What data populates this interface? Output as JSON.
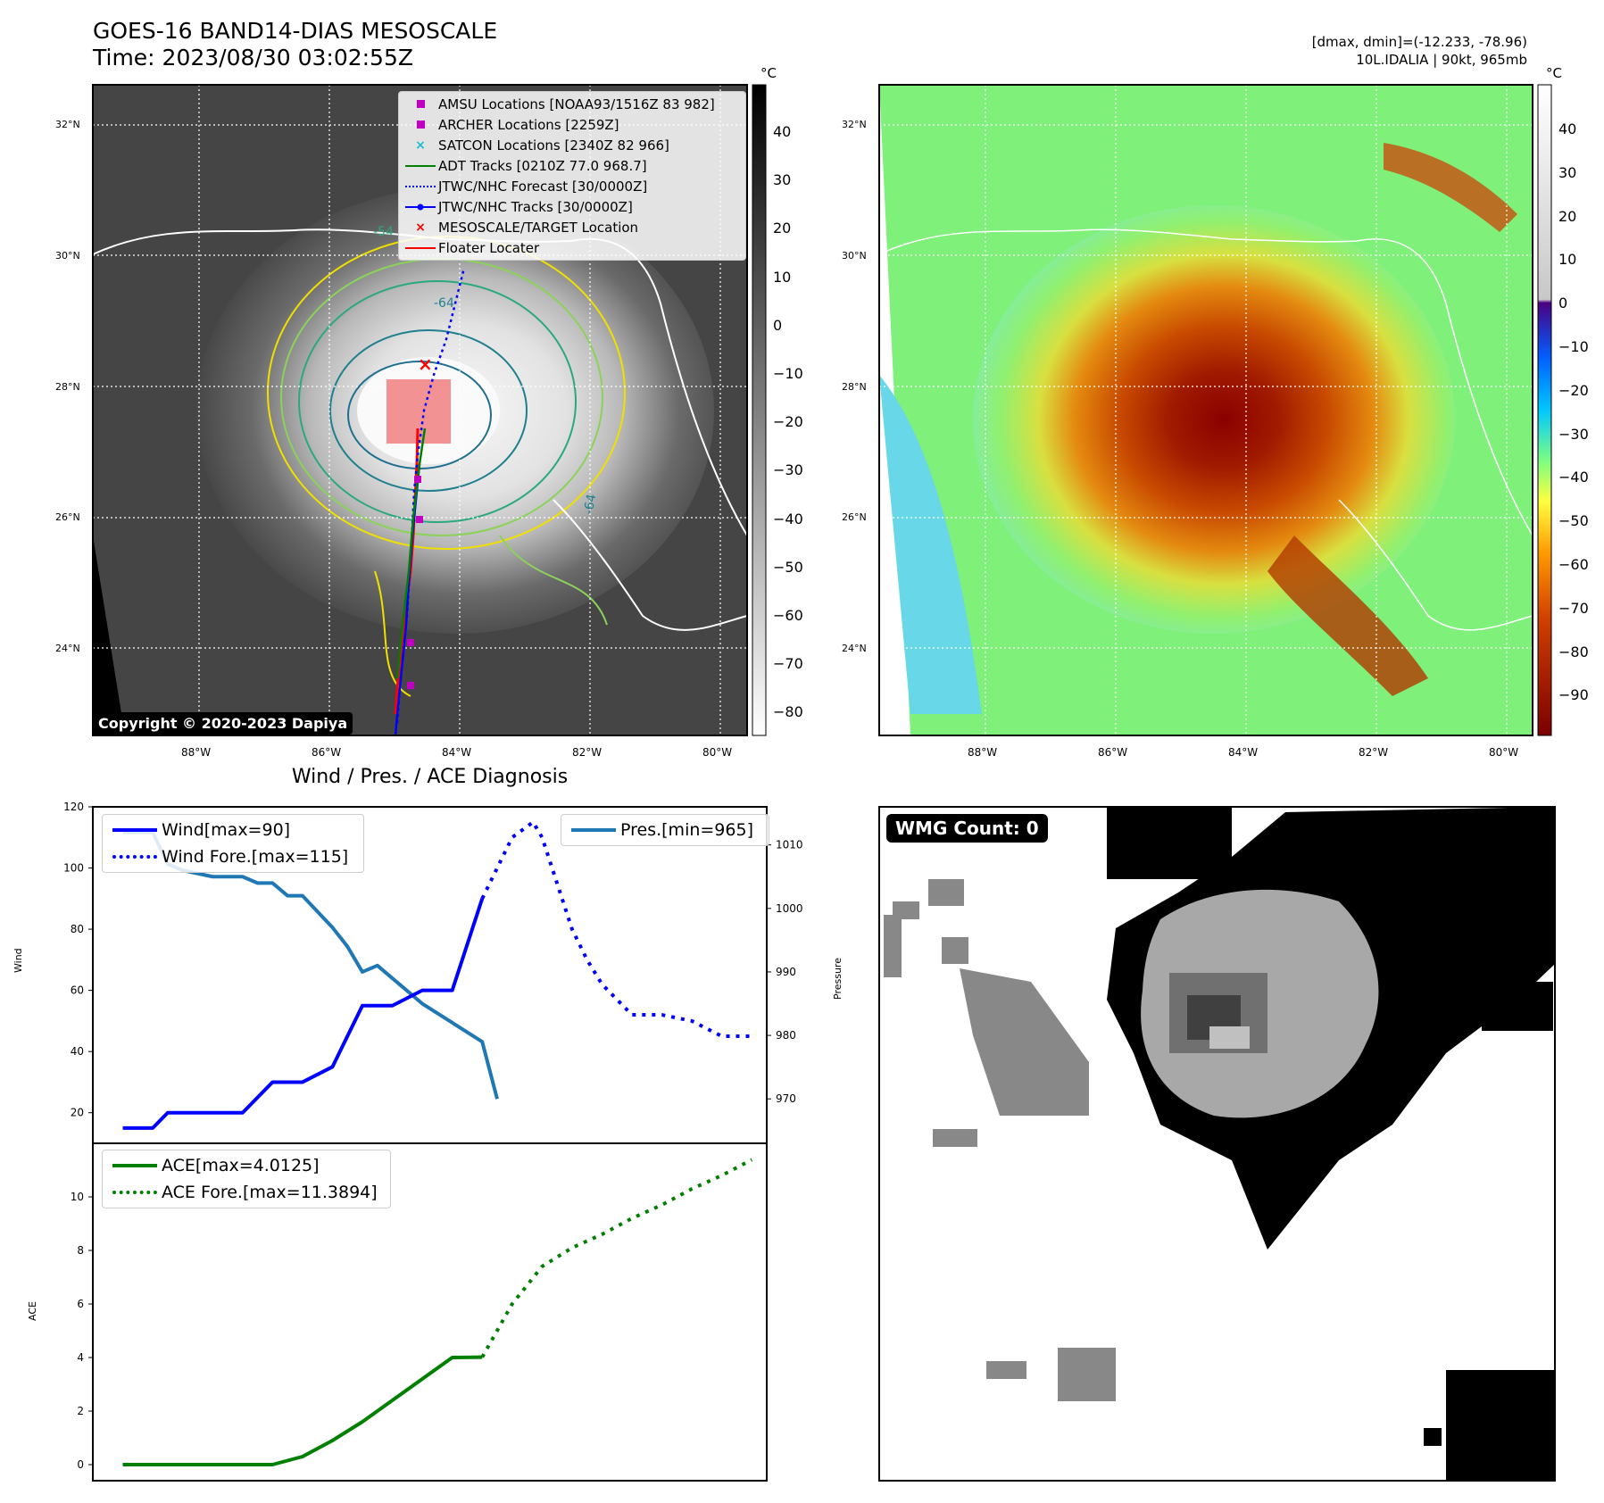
{
  "header": {
    "title": "GOES-16 BAND14-DIAS MESOSCALE",
    "time": "Time: 2023/08/30 03:02:55Z",
    "range": "[dmax, dmin]=(-12.233, -78.96)",
    "storm": "10L.IDALIA | 90kt, 965mb"
  },
  "map_panel": {
    "lat_labels": [
      "32°N",
      "30°N",
      "28°N",
      "26°N",
      "24°N"
    ],
    "lon_labels": [
      "88°W",
      "86°W",
      "84°W",
      "82°W",
      "80°W"
    ],
    "copyright": "Copyright © 2020-2023 Dapiya",
    "colorbar_unit": "°C",
    "colorbar_ticks": [
      "40",
      "30",
      "20",
      "10",
      "0",
      "−10",
      "−20",
      "−30",
      "−40",
      "−50",
      "−60",
      "−70",
      "−80"
    ],
    "contour_labels": [
      "-54",
      "-64",
      "-64"
    ],
    "legend": [
      {
        "label": "AMSU Locations [NOAA93/1516Z 83 982]",
        "symbol": "square",
        "color": "#c000c0"
      },
      {
        "label": "ARCHER Locations [2259Z]",
        "symbol": "square",
        "color": "#c000c0"
      },
      {
        "label": "SATCON Locations [2340Z 82 966]",
        "symbol": "x",
        "color": "#17becf"
      },
      {
        "label": "ADT Tracks [0210Z 77.0 968.7]",
        "symbol": "line",
        "color": "#008000"
      },
      {
        "label": "JTWC/NHC Forecast [30/0000Z]",
        "symbol": "dotted",
        "color": "#0000ff"
      },
      {
        "label": "JTWC/NHC Tracks [30/0000Z]",
        "symbol": "line-dot",
        "color": "#0000ff"
      },
      {
        "label": "MESOSCALE/TARGET Location",
        "symbol": "x",
        "color": "#ff0000"
      },
      {
        "label": "Floater Locater",
        "symbol": "line",
        "color": "#ff0000"
      }
    ]
  },
  "enhanced_panel": {
    "lat_labels": [
      "32°N",
      "30°N",
      "28°N",
      "26°N",
      "24°N"
    ],
    "lon_labels": [
      "88°W",
      "86°W",
      "84°W",
      "82°W",
      "80°W"
    ],
    "colorbar_unit": "°C",
    "colorbar_ticks": [
      "40",
      "30",
      "20",
      "10",
      "0",
      "−10",
      "−20",
      "−30",
      "−40",
      "−50",
      "−60",
      "−70",
      "−80",
      "−90"
    ]
  },
  "wmg_panel": {
    "label": "WMG Count: 0"
  },
  "chart_data": [
    {
      "type": "line",
      "title": "Wind / Pres. / ACE Diagnosis",
      "ylabel": "Wind",
      "ylabel_right": "Pressure",
      "ylim": [
        10,
        120
      ],
      "ylim_right": [
        963,
        1016
      ],
      "yticks": [
        20,
        40,
        60,
        80,
        100,
        120
      ],
      "yticks_right": [
        970,
        980,
        990,
        1000,
        1010
      ],
      "xlim": [
        0,
        22.5
      ],
      "series": [
        {
          "name": "Wind[max=90]",
          "axis": "left",
          "style": "solid",
          "color": "#0000ff",
          "x": [
            1,
            2,
            2.5,
            3,
            4,
            5,
            5.5,
            6,
            7,
            8,
            8.5,
            9,
            10,
            11,
            12,
            13
          ],
          "y": [
            15,
            15,
            20,
            20,
            20,
            20,
            25,
            30,
            30,
            35,
            45,
            55,
            55,
            60,
            60,
            90
          ]
        },
        {
          "name": "Wind Fore.[max=115]",
          "axis": "left",
          "style": "dotted",
          "color": "#0000ff",
          "x": [
            13,
            14,
            14.7,
            15,
            16,
            16.5,
            17,
            18,
            19,
            20,
            21,
            22
          ],
          "y": [
            90,
            110,
            115,
            110,
            80,
            70,
            62,
            52,
            52,
            50,
            45,
            45
          ]
        },
        {
          "name": "Pres.[min=965]",
          "axis": "right",
          "style": "solid",
          "color": "#1f77b4",
          "x": [
            1,
            2,
            2.5,
            3,
            4,
            5,
            5.5,
            6,
            6.5,
            7,
            8,
            8.5,
            9,
            9.5,
            10,
            11,
            12,
            13,
            13.5
          ],
          "y": [
            1012,
            1012,
            1007,
            1006,
            1005,
            1005,
            1004,
            1004,
            1002,
            1002,
            997,
            994,
            990,
            991,
            989,
            985,
            982,
            979,
            970
          ]
        }
      ]
    },
    {
      "type": "line",
      "ylabel": "ACE",
      "ylim": [
        -0.6,
        12
      ],
      "yticks": [
        0,
        2,
        4,
        6,
        8,
        10
      ],
      "xlim": [
        0,
        22.5
      ],
      "series": [
        {
          "name": "ACE[max=4.0125]",
          "style": "solid",
          "color": "#008000",
          "x": [
            1,
            3,
            5,
            6,
            7,
            8,
            9,
            10,
            11,
            12,
            13
          ],
          "y": [
            0,
            0,
            0,
            0,
            0.3,
            0.9,
            1.6,
            2.4,
            3.2,
            4.0,
            4.0125
          ]
        },
        {
          "name": "ACE Fore.[max=11.3894]",
          "style": "dotted",
          "color": "#008000",
          "x": [
            13,
            14,
            15,
            16,
            17,
            18,
            19,
            20,
            21,
            22
          ],
          "y": [
            4.0125,
            6.0,
            7.4,
            8.1,
            8.6,
            9.2,
            9.7,
            10.3,
            10.8,
            11.3894
          ]
        }
      ]
    }
  ]
}
